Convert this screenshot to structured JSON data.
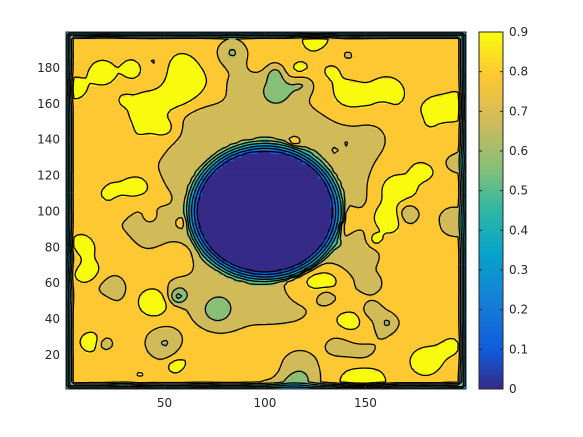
{
  "chart_data": {
    "type": "heatmap",
    "subtype": "filled-contour",
    "title": "",
    "xlabel": "",
    "ylabel": "",
    "xlim": [
      1,
      200
    ],
    "ylim": [
      1,
      200
    ],
    "x_ticks": [
      50,
      100,
      150
    ],
    "y_ticks": [
      20,
      40,
      60,
      80,
      100,
      120,
      140,
      160,
      180
    ],
    "x_tick_labels": [
      "50",
      "100",
      "150"
    ],
    "y_tick_labels": [
      "20",
      "40",
      "60",
      "80",
      "100",
      "120",
      "140",
      "160",
      "180"
    ],
    "colorbar": {
      "colormap": "parula",
      "range": [
        0,
        0.9
      ],
      "ticks": [
        0,
        0.1,
        0.2,
        0.3,
        0.4,
        0.5,
        0.6,
        0.7,
        0.8,
        0.9
      ],
      "tick_labels": [
        "0",
        "0.1",
        "0.2",
        "0.3",
        "0.4",
        "0.5",
        "0.6",
        "0.7",
        "0.8",
        "0.9"
      ],
      "placement": "right"
    },
    "contour_lines": "black",
    "features": {
      "central_disk": {
        "center": [
          100,
          100
        ],
        "radius": 33,
        "value": 0.05
      },
      "background_value": 0.75,
      "ring_value": 0.6,
      "border_value": 0.3
    },
    "grid": false
  },
  "colors": {
    "parula": [
      "#352A87",
      "#0F5CDD",
      "#1481D6",
      "#06A4CA",
      "#2EB7A4",
      "#87BF77",
      "#D1BB59",
      "#FEC832",
      "#F9FB0E"
    ]
  }
}
